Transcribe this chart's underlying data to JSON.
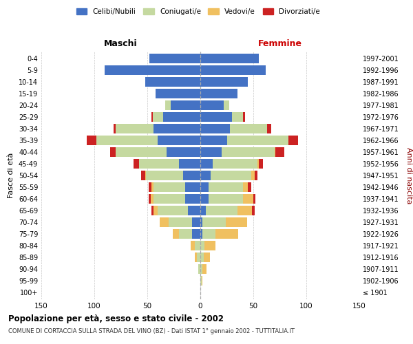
{
  "age_groups": [
    "100+",
    "95-99",
    "90-94",
    "85-89",
    "80-84",
    "75-79",
    "70-74",
    "65-69",
    "60-64",
    "55-59",
    "50-54",
    "45-49",
    "40-44",
    "35-39",
    "30-34",
    "25-29",
    "20-24",
    "15-19",
    "10-14",
    "5-9",
    "0-4"
  ],
  "birth_years": [
    "≤ 1901",
    "1902-1906",
    "1907-1911",
    "1912-1916",
    "1917-1921",
    "1922-1926",
    "1927-1931",
    "1932-1936",
    "1937-1941",
    "1942-1946",
    "1947-1951",
    "1952-1956",
    "1957-1961",
    "1962-1966",
    "1967-1971",
    "1972-1976",
    "1977-1981",
    "1982-1986",
    "1987-1991",
    "1992-1996",
    "1997-2001"
  ],
  "males": {
    "celibe": [
      0,
      0,
      0,
      0,
      0,
      8,
      8,
      12,
      14,
      14,
      16,
      20,
      32,
      40,
      44,
      35,
      28,
      42,
      52,
      90,
      48
    ],
    "coniugato": [
      0,
      0,
      2,
      3,
      5,
      12,
      22,
      28,
      30,
      30,
      35,
      38,
      48,
      58,
      36,
      10,
      5,
      0,
      0,
      0,
      0
    ],
    "vedovo": [
      0,
      0,
      0,
      2,
      4,
      6,
      8,
      4,
      3,
      2,
      1,
      0,
      0,
      0,
      0,
      0,
      0,
      0,
      0,
      0,
      0
    ],
    "divorziato": [
      0,
      0,
      0,
      0,
      0,
      0,
      0,
      2,
      2,
      3,
      4,
      5,
      5,
      9,
      2,
      1,
      0,
      0,
      0,
      0,
      0
    ]
  },
  "females": {
    "nubile": [
      0,
      0,
      0,
      0,
      0,
      2,
      2,
      5,
      8,
      8,
      10,
      12,
      20,
      25,
      28,
      30,
      22,
      35,
      45,
      62,
      55
    ],
    "coniugata": [
      0,
      1,
      2,
      3,
      4,
      12,
      22,
      30,
      32,
      32,
      38,
      42,
      50,
      58,
      35,
      10,
      5,
      0,
      0,
      0,
      0
    ],
    "vedova": [
      0,
      1,
      4,
      6,
      10,
      22,
      20,
      14,
      10,
      5,
      3,
      1,
      1,
      0,
      0,
      0,
      0,
      0,
      0,
      0,
      0
    ],
    "divorziata": [
      0,
      0,
      0,
      0,
      0,
      0,
      0,
      2,
      2,
      3,
      3,
      4,
      8,
      9,
      4,
      2,
      0,
      0,
      0,
      0,
      0
    ]
  },
  "xlim": 150,
  "colors": {
    "celibe": "#4472c4",
    "coniugato": "#c5d9a0",
    "vedovo": "#f0c060",
    "divorziato": "#cc2222"
  },
  "title": "Popolazione per età, sesso e stato civile - 2002",
  "subtitle": "COMUNE DI CORTACCIA SULLA STRADA DEL VINO (BZ) - Dati ISTAT 1° gennaio 2002 - TUTTITALIA.IT",
  "ylabel": "Fasce di età",
  "ylabel_right": "Anni di nascita",
  "legend_labels": [
    "Celibi/Nubili",
    "Coniugati/e",
    "Vedovi/e",
    "Divorziati/e"
  ],
  "maschi_label": "Maschi",
  "femmine_label": "Femmine"
}
